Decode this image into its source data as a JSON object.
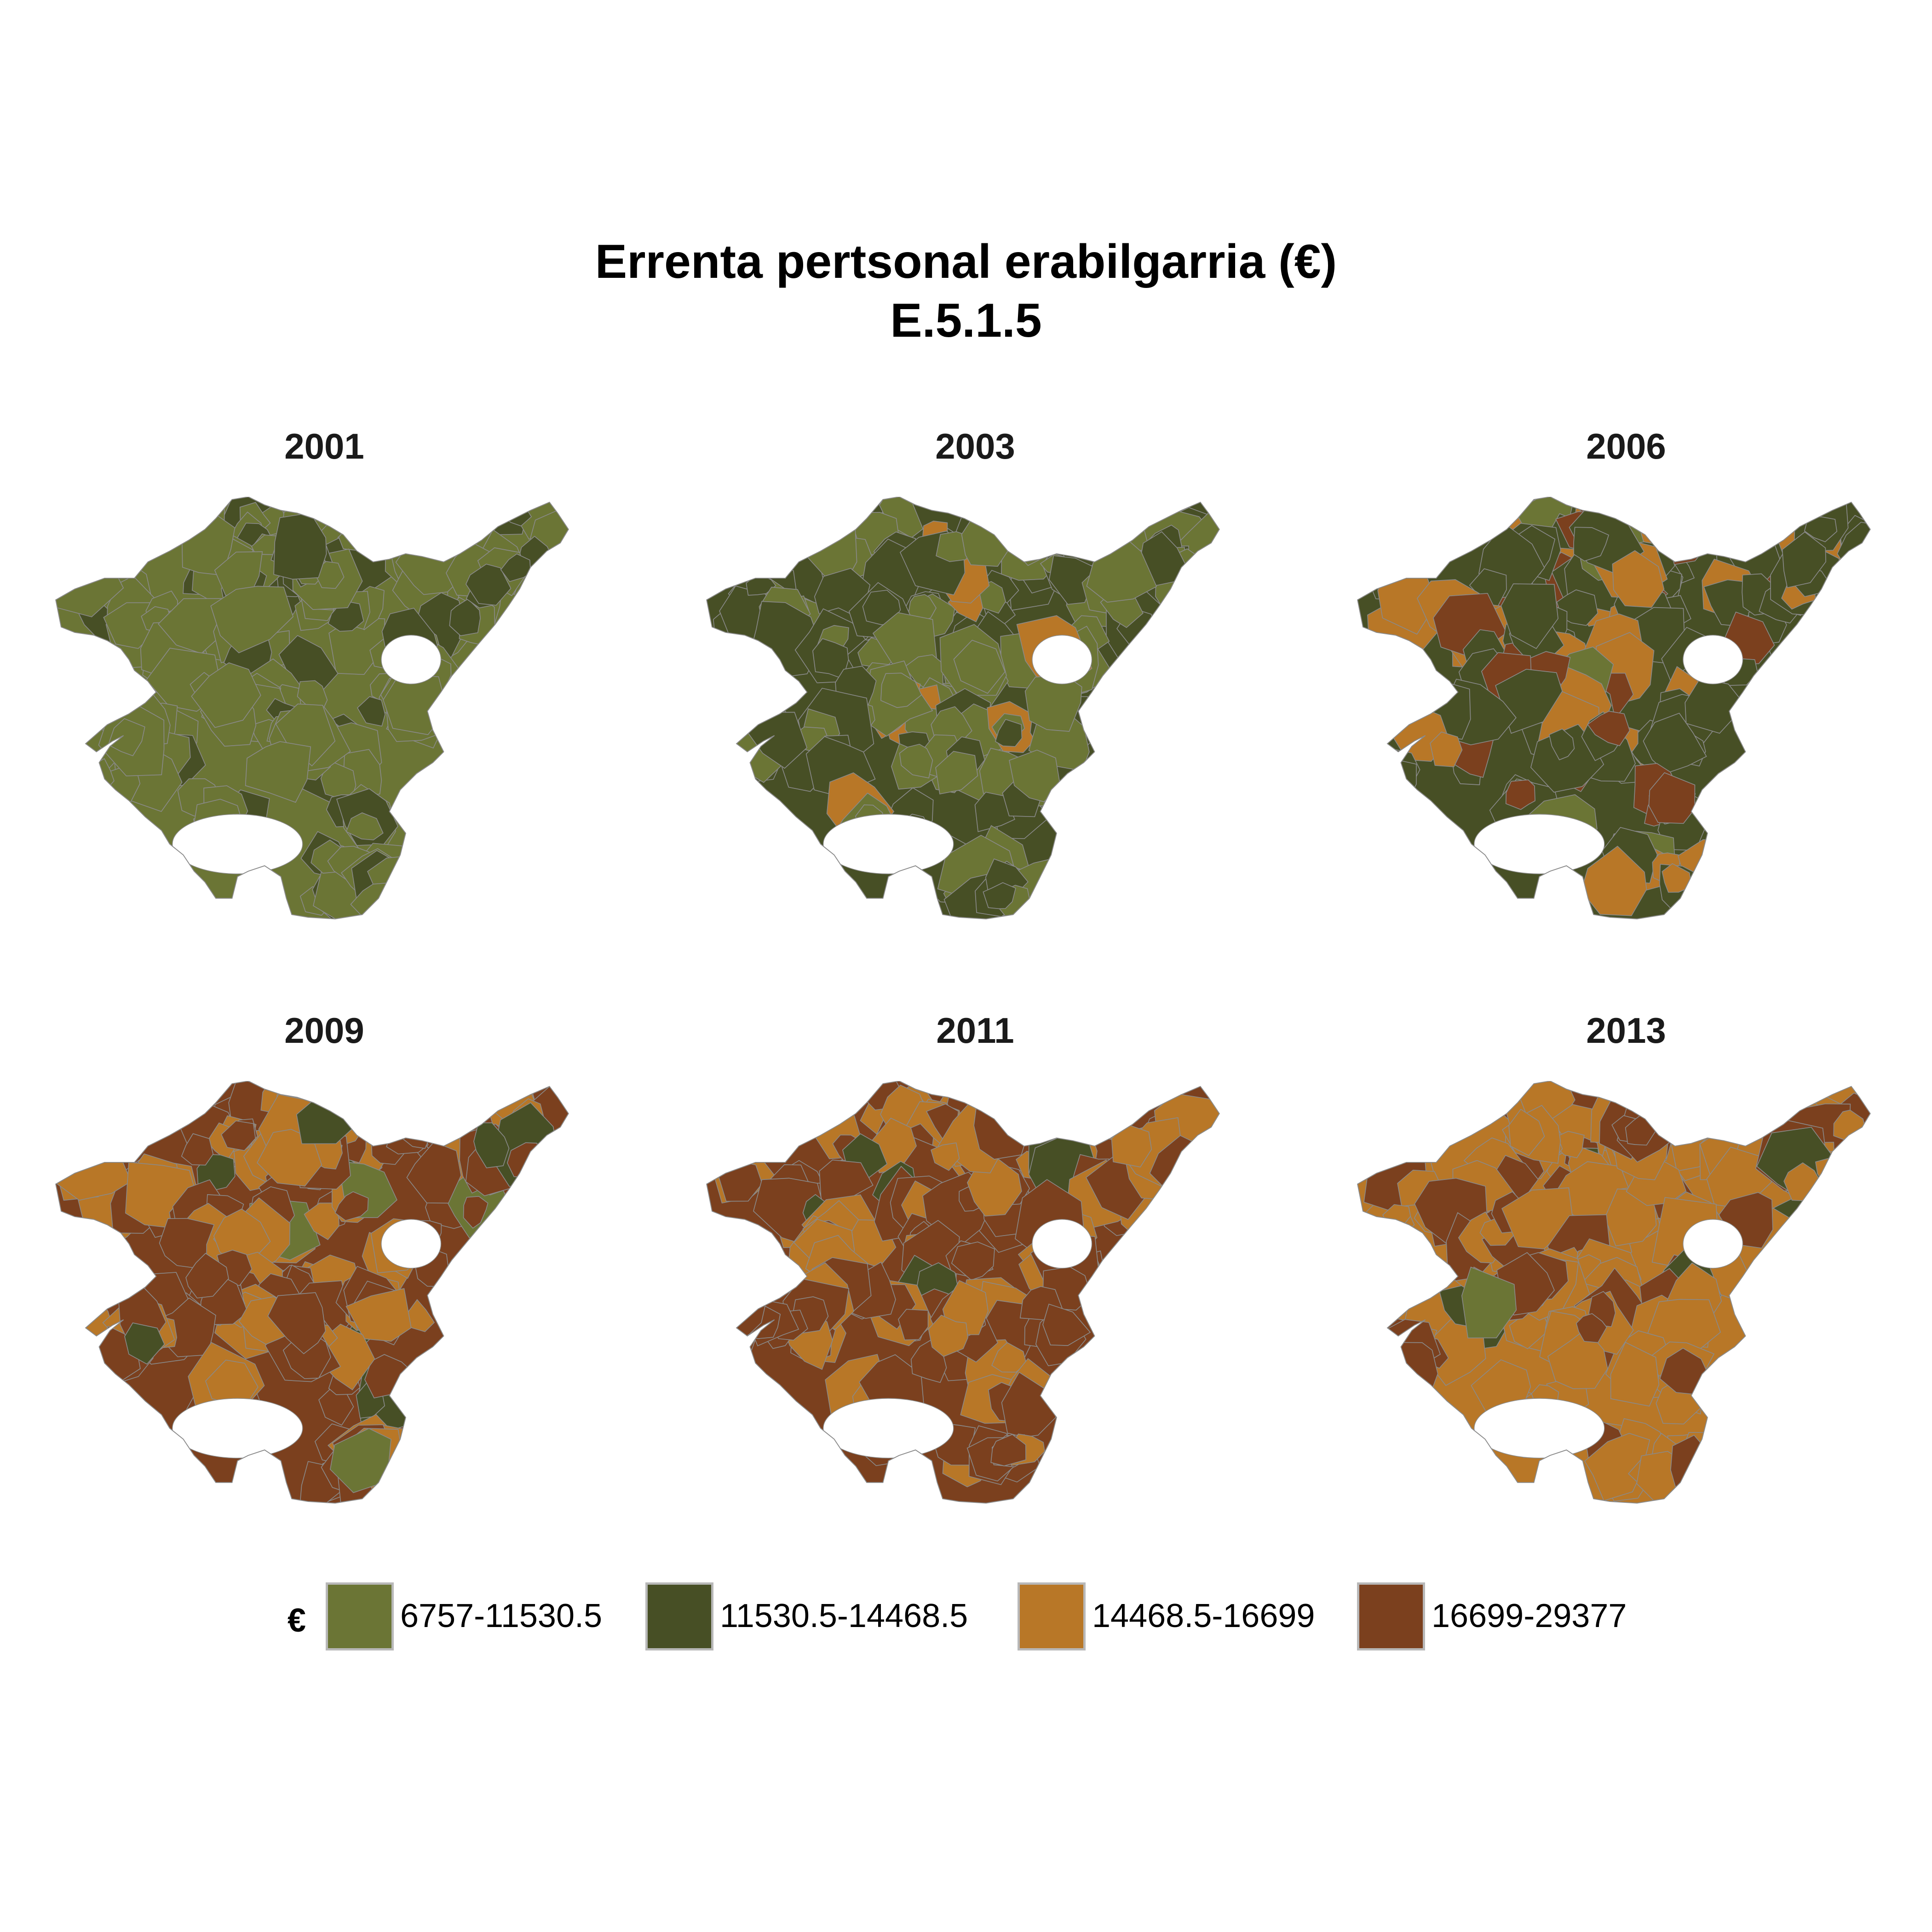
{
  "title": {
    "line1": "Errenta pertsonal erabilgarria (€)",
    "line2": "E.5.1.5"
  },
  "legend": {
    "title": "€",
    "classes": [
      {
        "label": "6757-11530.5",
        "color": "#6b7535"
      },
      {
        "label": "11530.5-14468.5",
        "color": "#474f25"
      },
      {
        "label": "14468.5-16699",
        "color": "#b87727"
      },
      {
        "label": "16699-29377",
        "color": "#7b401e"
      }
    ]
  },
  "panels": [
    {
      "year": "2001",
      "class_share": [
        0.7,
        0.28,
        0.015,
        0.005
      ]
    },
    {
      "year": "2003",
      "class_share": [
        0.45,
        0.47,
        0.07,
        0.01
      ]
    },
    {
      "year": "2006",
      "class_share": [
        0.04,
        0.52,
        0.34,
        0.1
      ]
    },
    {
      "year": "2009",
      "class_share": [
        0.01,
        0.08,
        0.42,
        0.49
      ]
    },
    {
      "year": "2011",
      "class_share": [
        0.02,
        0.06,
        0.4,
        0.52
      ]
    },
    {
      "year": "2013",
      "class_share": [
        0.02,
        0.1,
        0.55,
        0.33
      ]
    }
  ],
  "map_style": {
    "border_color": "#8a8a8a",
    "background": "#ffffff"
  }
}
